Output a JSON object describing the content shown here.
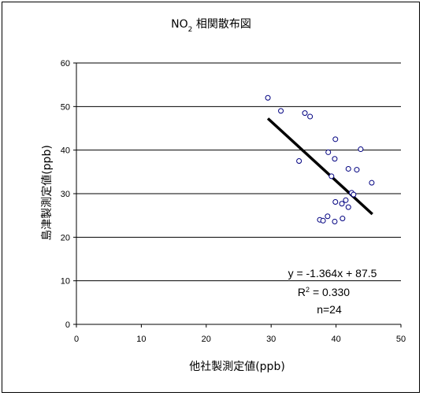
{
  "chart_data": {
    "type": "scatter",
    "title_main": "NO",
    "title_sub": "2",
    "title_rest": " 相関散布図",
    "xlabel": "他社製測定値(ppb)",
    "ylabel": "島津製測定値(ppb)",
    "xlim": [
      0,
      50
    ],
    "ylim": [
      0,
      60
    ],
    "xticks": [
      "0",
      "10",
      "20",
      "30",
      "40",
      "50"
    ],
    "yticks": [
      "0",
      "10",
      "20",
      "30",
      "40",
      "50",
      "60"
    ],
    "grid": "horizontal",
    "marker_color": "#000080",
    "line_color": "#000000",
    "points": [
      {
        "x": 29.5,
        "y": 52.0
      },
      {
        "x": 31.5,
        "y": 49.0
      },
      {
        "x": 35.2,
        "y": 48.5
      },
      {
        "x": 36.0,
        "y": 47.7
      },
      {
        "x": 34.3,
        "y": 37.5
      },
      {
        "x": 38.8,
        "y": 39.5
      },
      {
        "x": 39.9,
        "y": 42.5
      },
      {
        "x": 39.8,
        "y": 38.0
      },
      {
        "x": 43.8,
        "y": 40.2
      },
      {
        "x": 41.9,
        "y": 35.7
      },
      {
        "x": 43.2,
        "y": 35.5
      },
      {
        "x": 39.3,
        "y": 34.0
      },
      {
        "x": 45.5,
        "y": 32.5
      },
      {
        "x": 42.4,
        "y": 30.2
      },
      {
        "x": 39.9,
        "y": 28.1
      },
      {
        "x": 40.9,
        "y": 27.7
      },
      {
        "x": 41.5,
        "y": 28.5
      },
      {
        "x": 41.9,
        "y": 26.9
      },
      {
        "x": 38.7,
        "y": 24.8
      },
      {
        "x": 37.5,
        "y": 24.0
      },
      {
        "x": 38.0,
        "y": 23.8
      },
      {
        "x": 39.8,
        "y": 23.6
      },
      {
        "x": 41.0,
        "y": 24.3
      },
      {
        "x": 42.7,
        "y": 29.8
      }
    ],
    "trendline": {
      "slope": -1.364,
      "intercept": 87.5,
      "x_range": [
        29.5,
        45.6
      ]
    },
    "annotations": {
      "equation": "y = -1.364x + 87.5",
      "r2_prefix": "R",
      "r2_sup": "2",
      "r2_rest": " = 0.330",
      "n": "n=24"
    }
  }
}
